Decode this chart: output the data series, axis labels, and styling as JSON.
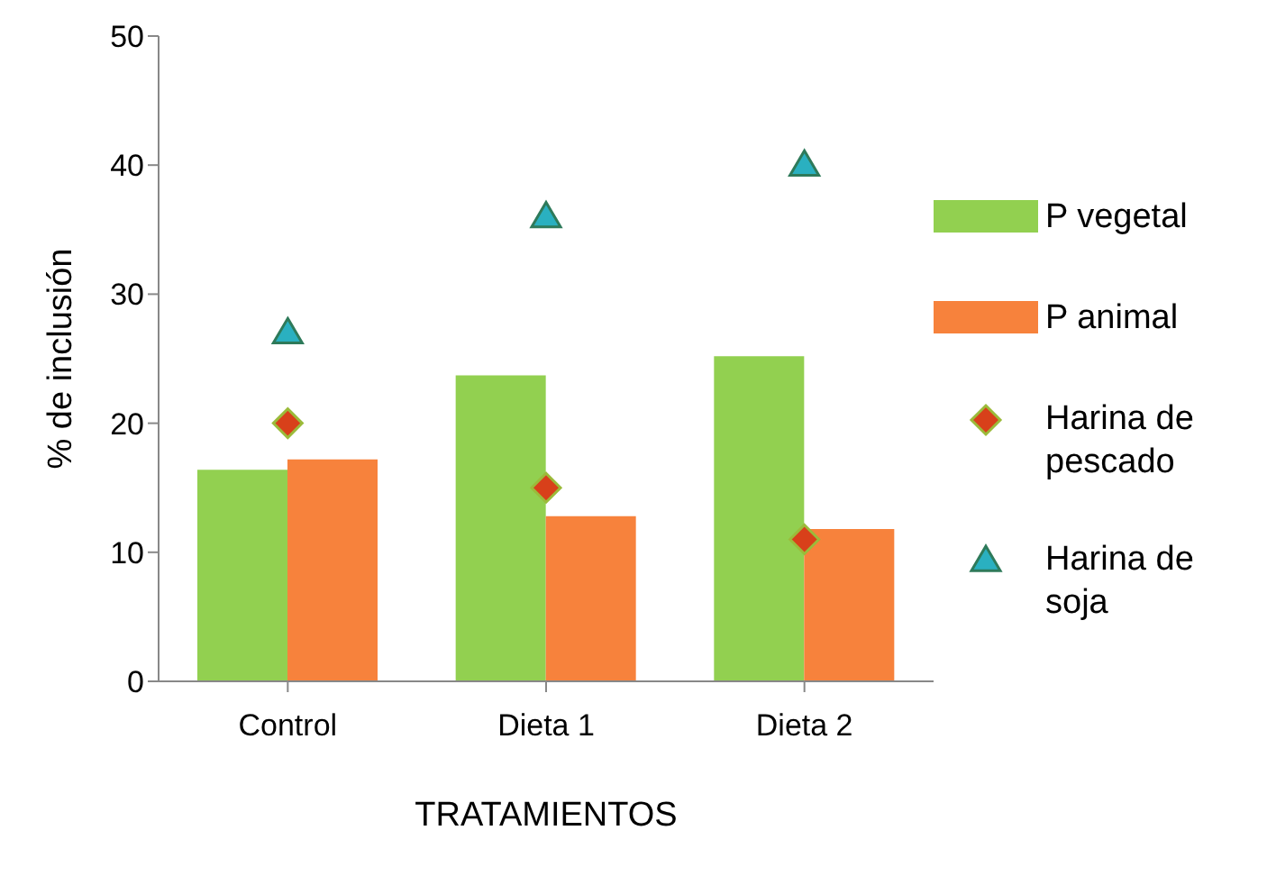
{
  "chart_data": {
    "type": "bar",
    "xlabel": "TRATAMIENTOS",
    "ylabel": "% de inclusión",
    "categories": [
      "Control",
      "Dieta 1",
      "Dieta 2"
    ],
    "series": [
      {
        "name": "P vegetal",
        "color": "#92d050",
        "values": [
          16.4,
          23.7,
          25.2
        ]
      },
      {
        "name": "P animal",
        "color": "#f7823c",
        "values": [
          17.2,
          12.8,
          11.8
        ]
      },
      {
        "name": "Harina de pescado",
        "type": "scatter",
        "marker": "diamond",
        "color": "#d8401a",
        "values": [
          20,
          15,
          11
        ]
      },
      {
        "name": "Harina de soja",
        "type": "scatter",
        "marker": "triangle",
        "color": "#2ab0c0",
        "values": [
          27,
          36,
          40
        ]
      }
    ],
    "ylim": [
      0,
      50
    ],
    "yticks": [
      0,
      10,
      20,
      30,
      40,
      50
    ],
    "grid": false,
    "legend": "right"
  }
}
